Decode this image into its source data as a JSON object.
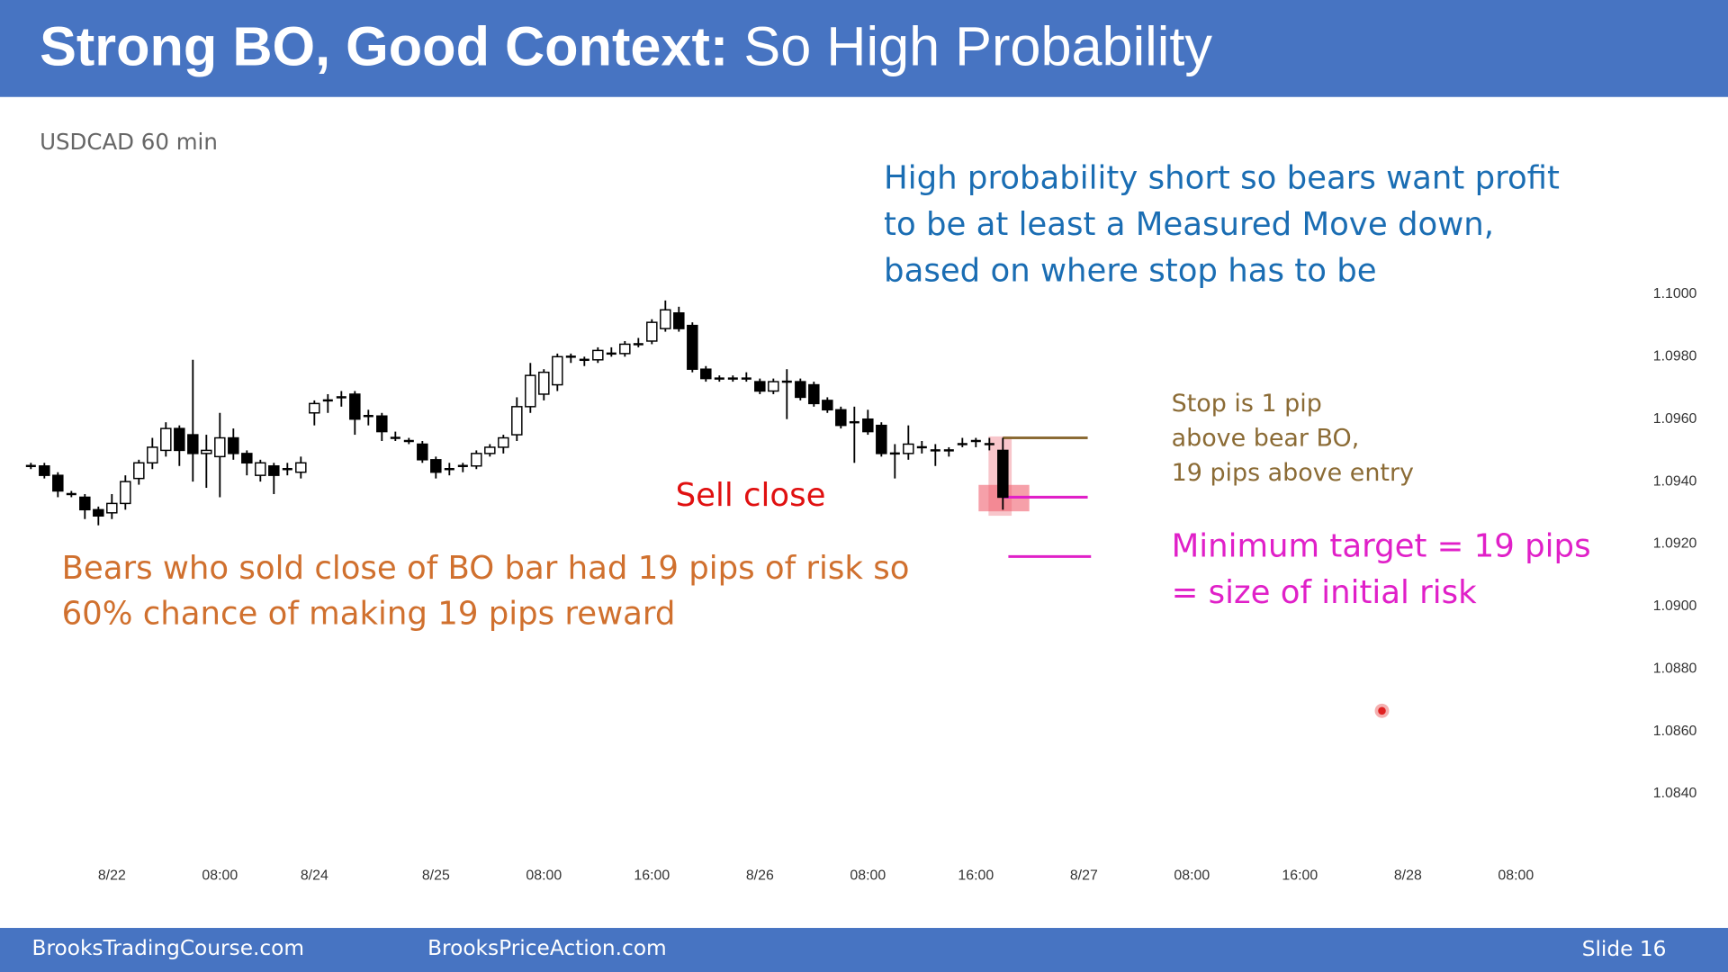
{
  "header": {
    "title_bold": "Strong BO, Good Context:",
    "title_regular": "So High Probability"
  },
  "footer": {
    "left": "BrooksTradingCourse.com",
    "center": "BrooksPriceAction.com",
    "slide": "Slide  16"
  },
  "chart_data": {
    "type": "candlestick",
    "subtitle": "USDCAD 60 min",
    "categories": [
      null,
      null,
      null,
      null,
      null,
      null,
      "8/22",
      null,
      null,
      null,
      null,
      null,
      null,
      null,
      "08:00",
      null,
      null,
      null,
      null,
      null,
      null,
      "8/24",
      null,
      null,
      null,
      null,
      null,
      null,
      null,
      null,
      "8/25",
      null,
      null,
      null,
      null,
      null,
      null,
      null,
      "08:00",
      null,
      null,
      null,
      null,
      null,
      null,
      null,
      "16:00",
      null,
      null,
      null,
      null,
      null,
      null,
      null,
      "8/26",
      null,
      null,
      null,
      null,
      null,
      null,
      null,
      "08:00",
      null,
      null,
      null,
      null,
      null,
      null,
      null,
      "16:00",
      null,
      null,
      null,
      null,
      null,
      null,
      null,
      "8/27",
      null,
      null,
      null,
      null,
      null,
      null,
      null,
      "08:00",
      null,
      null,
      null,
      null,
      null,
      null,
      null,
      "16:00",
      null,
      null,
      null,
      null,
      null,
      null,
      null,
      "8/28",
      null,
      null,
      null,
      null,
      null,
      null,
      null,
      "08:00",
      null,
      null,
      null,
      null
    ],
    "open": [
      1.0945,
      1.0945,
      1.0942,
      1.0936,
      1.0935,
      1.0931,
      1.093,
      1.0933,
      1.0941,
      1.0946,
      1.095,
      1.0957,
      1.0955,
      1.0949,
      1.0948,
      1.0954,
      1.0949,
      1.0942,
      1.0945,
      1.0944,
      1.0943,
      1.0962,
      1.0966,
      1.0967,
      1.0968,
      1.0961,
      1.0961,
      1.0954,
      1.0953,
      1.0952,
      1.0947,
      1.0944,
      1.0945,
      1.0945,
      1.0949,
      1.0951,
      1.0955,
      1.0964,
      1.0968,
      1.0971,
      1.098,
      1.0979,
      1.0979,
      1.0981,
      1.0981,
      1.0984,
      1.0985,
      1.0989,
      1.0994,
      1.099,
      1.0976,
      1.0973,
      1.0973,
      1.0973,
      1.0972,
      1.0969,
      1.0972,
      1.0972,
      1.0971,
      1.0966,
      1.0963,
      1.0959,
      1.096,
      1.0958,
      1.0949,
      1.0949,
      1.0951,
      1.095,
      1.095,
      1.0952,
      1.0953,
      1.0952,
      1.095,
      null,
      null,
      null,
      null,
      null,
      null,
      null,
      null,
      null,
      null,
      null,
      null,
      null,
      null,
      null,
      null,
      null,
      null,
      null,
      null,
      null,
      null,
      null,
      null,
      null,
      null,
      null,
      null,
      null,
      null,
      null,
      null,
      null,
      null,
      null,
      null,
      null,
      null,
      null,
      null,
      null,
      null
    ],
    "high": [
      1.0946,
      1.0946,
      1.0943,
      1.0937,
      1.0936,
      1.0932,
      1.0936,
      1.0942,
      1.0947,
      1.0954,
      1.0959,
      1.0958,
      1.0979,
      1.0955,
      1.0962,
      1.0957,
      1.095,
      1.0947,
      1.0946,
      1.0946,
      1.0948,
      1.0966,
      1.0968,
      1.0969,
      1.0969,
      1.0963,
      1.0962,
      1.0956,
      1.0954,
      1.0953,
      1.0948,
      1.0946,
      1.0946,
      1.095,
      1.0952,
      1.0955,
      1.0967,
      1.0978,
      1.0976,
      1.0981,
      1.0981,
      1.098,
      1.0983,
      1.0983,
      1.0985,
      1.0986,
      1.0992,
      1.0998,
      1.0996,
      1.0991,
      1.0977,
      1.0974,
      1.0974,
      1.0975,
      1.0973,
      1.0973,
      1.0976,
      1.0973,
      1.0972,
      1.0967,
      1.0964,
      1.0964,
      1.0963,
      1.0959,
      1.0952,
      1.0958,
      1.0953,
      1.0952,
      1.0951,
      1.0954,
      1.0954,
      1.0954,
      1.0954,
      null,
      null,
      null,
      null,
      null,
      null,
      null,
      null,
      null,
      null,
      null,
      null,
      null,
      null,
      null,
      null,
      null,
      null,
      null,
      null,
      null,
      null,
      null,
      null,
      null,
      null,
      null,
      null,
      null,
      null,
      null,
      null,
      null,
      null,
      null,
      null,
      null,
      null,
      null,
      null,
      null,
      null
    ],
    "low": [
      1.0944,
      1.0941,
      1.0935,
      1.0935,
      1.0928,
      1.0926,
      1.0928,
      1.0931,
      1.0939,
      1.0944,
      1.0948,
      1.0945,
      1.094,
      1.0938,
      1.0935,
      1.0947,
      1.0942,
      1.094,
      1.0936,
      1.0942,
      1.0941,
      1.0958,
      1.0962,
      1.0964,
      1.0955,
      1.0958,
      1.0953,
      1.0953,
      1.0952,
      1.0946,
      1.0941,
      1.0942,
      1.0943,
      1.0944,
      1.0948,
      1.0949,
      1.0953,
      1.0962,
      1.0966,
      1.0969,
      1.0978,
      1.0977,
      1.0978,
      1.098,
      1.098,
      1.0983,
      1.0984,
      1.0988,
      1.0988,
      1.0975,
      1.0972,
      1.0972,
      1.0972,
      1.0972,
      1.0968,
      1.0968,
      1.096,
      1.0966,
      1.0964,
      1.0962,
      1.0957,
      1.0946,
      1.0955,
      1.0948,
      1.0941,
      1.0947,
      1.0949,
      1.0945,
      1.0948,
      1.0951,
      1.0951,
      1.095,
      1.0931,
      null,
      null,
      null,
      null,
      null,
      null,
      null,
      null,
      null,
      null,
      null,
      null,
      null,
      null,
      null,
      null,
      null,
      null,
      null,
      null,
      null,
      null,
      null,
      null,
      null,
      null,
      null,
      null,
      null,
      null,
      null,
      null,
      null,
      null,
      null,
      null,
      null,
      null,
      null,
      null,
      null,
      null
    ],
    "close": [
      1.0945,
      1.0942,
      1.0937,
      1.0936,
      1.0931,
      1.0929,
      1.0933,
      1.094,
      1.0946,
      1.0951,
      1.0957,
      1.095,
      1.0949,
      1.095,
      1.0954,
      1.0949,
      1.0946,
      1.0946,
      1.0942,
      1.0944,
      1.0946,
      1.0965,
      1.0966,
      1.0967,
      1.096,
      1.0961,
      1.0956,
      1.0954,
      1.0953,
      1.0947,
      1.0943,
      1.0944,
      1.0945,
      1.0949,
      1.0951,
      1.0954,
      1.0964,
      1.0974,
      1.0975,
      1.098,
      1.098,
      1.0979,
      1.0982,
      1.0981,
      1.0984,
      1.0984,
      1.0991,
      1.0995,
      1.0989,
      1.0976,
      1.0973,
      1.0973,
      1.0973,
      1.0973,
      1.0969,
      1.0972,
      1.0972,
      1.0967,
      1.0965,
      1.0963,
      1.0958,
      1.0959,
      1.0956,
      1.0949,
      1.0949,
      1.0952,
      1.0951,
      1.095,
      1.095,
      1.0952,
      1.0953,
      1.0952,
      1.0935,
      null,
      null,
      null,
      null,
      null,
      null,
      null,
      null,
      null,
      null,
      null,
      null,
      null,
      null,
      null,
      null,
      null,
      null,
      null,
      null,
      null,
      null,
      null,
      null,
      null,
      null,
      null,
      null,
      null,
      null,
      null,
      null,
      null,
      null,
      null,
      null,
      null,
      null,
      null,
      null,
      null,
      null
    ],
    "up_color": "#ffffff",
    "down_color": "#000000",
    "ylim": [
      1.0826,
      1.1006
    ],
    "yticks": [
      {
        "value": 1.1,
        "label": "1.1000"
      },
      {
        "value": 1.098,
        "label": "1.0980"
      },
      {
        "value": 1.096,
        "label": "1.0960"
      },
      {
        "value": 1.094,
        "label": "1.0940"
      },
      {
        "value": 1.092,
        "label": "1.0920"
      },
      {
        "value": 1.09,
        "label": "1.0900"
      },
      {
        "value": 1.088,
        "label": "1.0880"
      },
      {
        "value": 1.086,
        "label": "1.0860"
      },
      {
        "value": 1.084,
        "label": "1.0840"
      }
    ],
    "levels": [
      {
        "value": 1.0954,
        "color": "#8b6b35"
      },
      {
        "value": 1.0935,
        "color": "#e020c8"
      },
      {
        "value": 1.0916,
        "color": "#e020c8"
      }
    ],
    "annotations": [
      {
        "lines": [
          "High probability short so bears want profit",
          "to be at least a Measured Move down,",
          "based on where stop has to be"
        ],
        "color": "#1a6db3"
      },
      {
        "lines": [
          "Sell close"
        ],
        "color": "#e01010"
      },
      {
        "lines": [
          "Bears who sold close of BO bar had 19 pips of risk so",
          "60% chance of making 19 pips reward"
        ],
        "color": "#d0702e"
      },
      {
        "lines": [
          "Stop is 1 pip",
          "above bear BO,",
          "19 pips above entry"
        ],
        "color": "#8b6b35"
      },
      {
        "lines": [
          "Minimum target = 19 pips",
          "= size of initial risk"
        ],
        "color": "#e020c8"
      }
    ]
  }
}
